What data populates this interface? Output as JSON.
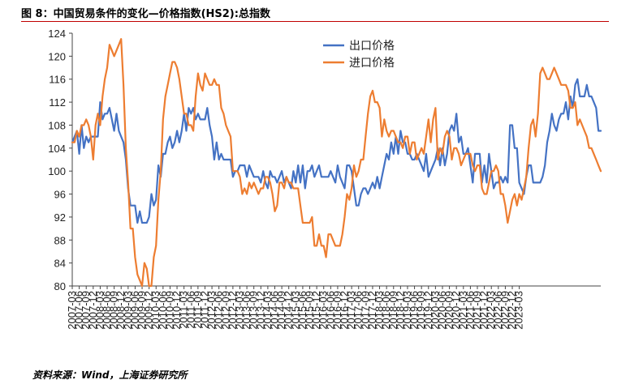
{
  "figure": {
    "title": "图 8：中国贸易条件的变化—价格指数(HS2):总指数",
    "source": "资料来源：Wind，上海证券研究所"
  },
  "chart_data": {
    "type": "line",
    "start": "2007-03",
    "frequency": "monthly",
    "x_tick_labels": [
      "2007-03",
      "2007-06",
      "2007-09",
      "2007-12",
      "2008-03",
      "2008-06",
      "2008-09",
      "2008-12",
      "2009-03",
      "2009-06",
      "2009-09",
      "2009-12",
      "2010-03",
      "2010-06",
      "2010-09",
      "2010-12",
      "2011-03",
      "2011-06",
      "2011-09",
      "2011-12",
      "2012-03",
      "2012-06",
      "2012-09",
      "2012-12",
      "2013-03",
      "2013-06",
      "2013-09",
      "2013-12",
      "2014-03",
      "2014-06",
      "2014-09",
      "2014-12",
      "2015-03",
      "2015-06",
      "2015-09",
      "2015-12",
      "2016-03",
      "2016-06",
      "2016-09",
      "2016-12",
      "2017-03",
      "2017-06",
      "2017-09",
      "2017-12",
      "2018-03",
      "2018-06",
      "2018-09",
      "2018-12",
      "2019-03",
      "2019-06",
      "2019-09",
      "2019-12",
      "2020-03",
      "2020-06",
      "2020-09",
      "2020-12",
      "2021-03",
      "2021-06",
      "2021-09",
      "2021-12",
      "2022-03",
      "2022-06",
      "2022-09",
      "2022-12",
      "2023-03"
    ],
    "y_ticks": [
      80,
      84,
      88,
      92,
      96,
      100,
      104,
      108,
      112,
      116,
      120,
      124
    ],
    "ylim": [
      80,
      124
    ],
    "grid": false,
    "legend_position": "top-center",
    "series": [
      {
        "name": "出口价格",
        "color": "#4472C4",
        "values": [
          105,
          106,
          107,
          103,
          108,
          104,
          106,
          105,
          106,
          106,
          106,
          106,
          112,
          109,
          110,
          110,
          111,
          109,
          107,
          110,
          107,
          106,
          105,
          102,
          97,
          94,
          94,
          94,
          91,
          93,
          91,
          91,
          91,
          92,
          96,
          94,
          95,
          101,
          99,
          103,
          103,
          105,
          106,
          104,
          105,
          107,
          105,
          107,
          110,
          107,
          111,
          110,
          111,
          109,
          110,
          109,
          109,
          109,
          111,
          108,
          106,
          102,
          105,
          102,
          103,
          102,
          102,
          102,
          102,
          99,
          100,
          100,
          101,
          101,
          101,
          99,
          101,
          100,
          99,
          99,
          99,
          98,
          100,
          98,
          97,
          100,
          99,
          99,
          98,
          99,
          100,
          98,
          99,
          98,
          97,
          100,
          98,
          101,
          98,
          101,
          97,
          100,
          100,
          101,
          99,
          100,
          101,
          99,
          99,
          99,
          99,
          100,
          99,
          98,
          101,
          99,
          98,
          97,
          101,
          101,
          100,
          97,
          94,
          94,
          96,
          97,
          97,
          96,
          97,
          98,
          97,
          99,
          97,
          99,
          101,
          103,
          102,
          105,
          103,
          106,
          103,
          107,
          105,
          105,
          103,
          103,
          102,
          102,
          103,
          102,
          101,
          100,
          103,
          99,
          100,
          101,
          102,
          104,
          101,
          104,
          101,
          103,
          107,
          108,
          107,
          110,
          105,
          106,
          103,
          103,
          104,
          101,
          98,
          103,
          103,
          103,
          98,
          101,
          98,
          103,
          100,
          97,
          98,
          98,
          99,
          98,
          99,
          98,
          108,
          108,
          104,
          104,
          98,
          97,
          96,
          99,
          101,
          101,
          98,
          98,
          98,
          98,
          99,
          101,
          105,
          107,
          110,
          108,
          107,
          109,
          110,
          110,
          112,
          109,
          113,
          111,
          115,
          116,
          113,
          113,
          113,
          115,
          113,
          113,
          112,
          111,
          107,
          107
        ]
      },
      {
        "name": "进口价格",
        "color": "#ED7D31",
        "values": [
          105,
          105,
          107,
          106,
          108,
          108,
          109,
          108,
          106,
          102,
          108,
          110,
          108,
          113,
          116,
          118,
          122,
          121,
          120,
          121,
          122,
          123,
          115,
          104,
          98,
          90,
          90,
          85,
          82,
          81,
          80,
          84,
          83,
          80,
          80,
          85,
          87,
          95,
          100,
          109,
          113,
          115,
          117,
          119,
          119,
          118,
          116,
          113,
          110,
          110,
          108,
          108,
          107,
          113,
          117,
          115,
          114,
          117,
          116,
          115,
          115,
          116,
          115,
          115,
          111,
          110,
          108,
          107,
          106,
          100,
          100,
          100,
          99,
          96,
          97,
          96,
          98,
          97,
          98,
          97,
          96,
          97,
          97,
          99,
          99,
          98,
          96,
          93,
          94,
          98,
          98,
          97,
          99,
          98,
          98,
          97,
          97,
          97,
          94,
          91,
          91,
          91,
          91,
          92,
          87,
          87,
          89,
          87,
          87,
          85,
          89,
          89,
          88,
          87,
          87,
          87,
          89,
          92,
          96,
          95,
          97,
          101,
          99,
          100,
          102,
          102,
          106,
          110,
          113,
          114,
          112,
          112,
          111,
          106,
          109,
          107,
          106,
          107,
          107,
          106,
          105,
          105,
          104,
          106,
          106,
          103,
          105,
          105,
          102,
          103,
          104,
          103,
          106,
          109,
          105,
          109,
          111,
          102,
          104,
          103,
          106,
          107,
          106,
          102,
          104,
          104,
          103,
          101,
          102,
          103,
          103,
          103,
          101,
          100,
          101,
          101,
          97,
          96,
          96,
          98,
          100,
          100,
          101,
          100,
          96,
          96,
          94,
          91,
          93,
          95,
          96,
          94,
          96,
          95,
          97,
          99,
          104,
          108,
          109,
          106,
          110,
          117,
          118,
          117,
          116,
          116,
          117,
          118,
          117,
          116,
          115,
          115,
          115,
          114,
          111,
          111,
          112,
          108,
          109,
          108,
          107,
          106,
          104,
          104,
          103,
          102,
          101,
          100
        ]
      }
    ]
  }
}
